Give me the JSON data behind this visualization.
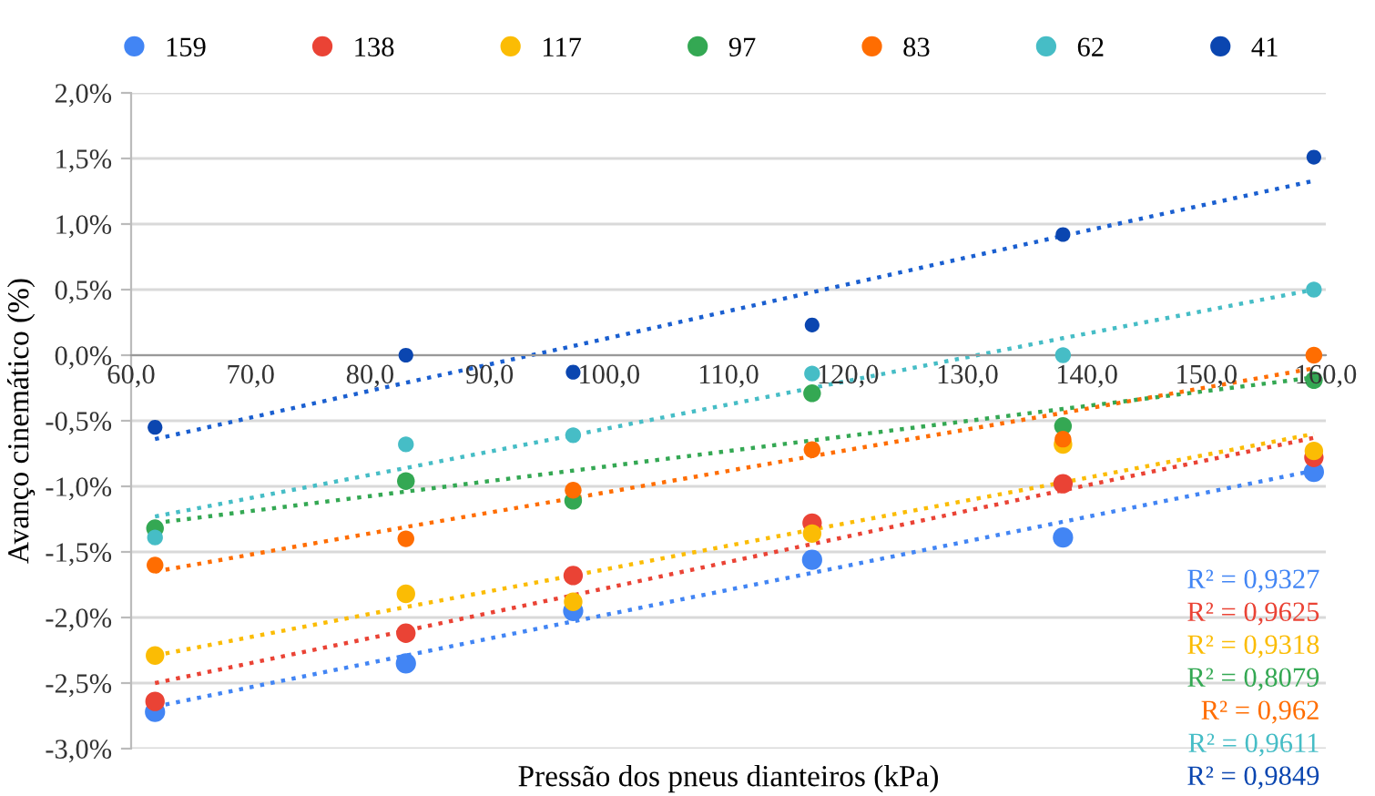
{
  "chart_data": {
    "type": "scatter",
    "xlabel": "Pressão dos pneus dianteiros (kPa)",
    "ylabel": "Avanço cinemático (%)",
    "xlim": [
      60,
      160
    ],
    "xticks": [
      {
        "value": 60,
        "label": "60,0"
      },
      {
        "value": 70,
        "label": "70,0"
      },
      {
        "value": 80,
        "label": "80,0"
      },
      {
        "value": 90,
        "label": "90,0"
      },
      {
        "value": 100,
        "label": "100,0"
      },
      {
        "value": 110,
        "label": "110,0"
      },
      {
        "value": 120,
        "label": "120,0"
      },
      {
        "value": 130,
        "label": "130,0"
      },
      {
        "value": 140,
        "label": "140,0"
      },
      {
        "value": 150,
        "label": "150,0"
      },
      {
        "value": 160,
        "label": "160,0"
      }
    ],
    "ylim": [
      -3.0,
      2.0
    ],
    "yticks": [
      {
        "value": -3.0,
        "label": "-3,0%"
      },
      {
        "value": -2.5,
        "label": "-2,5%"
      },
      {
        "value": -2.0,
        "label": "-2,0%"
      },
      {
        "value": -1.5,
        "label": "-1,5%"
      },
      {
        "value": -1.0,
        "label": "-1,0%"
      },
      {
        "value": -0.5,
        "label": "-0,5%"
      },
      {
        "value": 0.0,
        "label": "0,0%"
      },
      {
        "value": 0.5,
        "label": "0,5%"
      },
      {
        "value": 1.0,
        "label": "1,0%"
      },
      {
        "value": 1.5,
        "label": "1,5%"
      },
      {
        "value": 2.0,
        "label": "2,0%"
      }
    ],
    "x": [
      62,
      83,
      97,
      117,
      138,
      159
    ],
    "grid": "y",
    "legend": "top",
    "marker": "circle",
    "series": [
      {
        "name": "159",
        "color": "#4285f4",
        "values": [
          -2.72,
          -2.35,
          -1.95,
          -1.56,
          -1.39,
          -0.89
        ]
      },
      {
        "name": "138",
        "color": "#ea4335",
        "values": [
          -2.64,
          -2.12,
          -1.68,
          -1.28,
          -0.98,
          -0.78
        ]
      },
      {
        "name": "117",
        "color": "#fbbc04",
        "values": [
          -2.29,
          -1.82,
          -1.88,
          -1.36,
          -0.68,
          -0.73
        ]
      },
      {
        "name": "97",
        "color": "#34a853",
        "values": [
          -1.32,
          -0.96,
          -1.11,
          -0.29,
          -0.54,
          -0.19
        ]
      },
      {
        "name": "83",
        "color": "#ff6d01",
        "values": [
          -1.6,
          -1.4,
          -1.03,
          -0.72,
          -0.64,
          0.0
        ]
      },
      {
        "name": "62",
        "color": "#46bdc6",
        "values": [
          -1.39,
          -0.68,
          -0.61,
          -0.14,
          0.0,
          0.5
        ]
      },
      {
        "name": "41",
        "color": "#0b46b0",
        "values": [
          -0.55,
          0.0,
          -0.13,
          0.23,
          0.92,
          1.51
        ]
      },
      {
        "type": "line",
        "color": "#4285f4",
        "values": [
          -2.68,
          -2.29,
          -2.03,
          -1.66,
          -1.27,
          -0.88
        ],
        "line_style": "dotted",
        "marker": "none"
      },
      {
        "type": "line",
        "color": "#ea4335",
        "values": [
          -2.5,
          -2.1,
          -1.83,
          -1.44,
          -1.03,
          -0.63
        ],
        "line_style": "dotted",
        "marker": "none"
      },
      {
        "type": "line",
        "color": "#fbbc04",
        "values": [
          -2.29,
          -1.92,
          -1.68,
          -1.33,
          -0.97,
          -0.6
        ],
        "line_style": "dotted",
        "marker": "none"
      },
      {
        "type": "line",
        "color": "#34a853",
        "values": [
          -1.28,
          -1.04,
          -0.88,
          -0.65,
          -0.41,
          -0.17
        ],
        "line_style": "dotted",
        "marker": "none"
      },
      {
        "type": "line",
        "color": "#ff6d01",
        "values": [
          -1.65,
          -1.31,
          -1.09,
          -0.77,
          -0.44,
          -0.1
        ],
        "line_style": "dotted",
        "marker": "none"
      },
      {
        "type": "line",
        "color": "#46bdc6",
        "values": [
          -1.23,
          -0.86,
          -0.61,
          -0.25,
          0.13,
          0.5
        ],
        "line_style": "dotted",
        "marker": "none"
      },
      {
        "type": "line",
        "color": "#1a5fd0",
        "values": [
          -0.64,
          -0.21,
          0.07,
          0.48,
          0.91,
          1.33
        ],
        "line_style": "dotted",
        "marker": "none"
      }
    ],
    "annotations": [
      "R² = 0,9327",
      "R² = 0,9625",
      "R² = 0,9318",
      "R² = 0,8079",
      "R² = 0,962",
      "R² = 0,9611",
      "R² = 0,9849"
    ]
  }
}
